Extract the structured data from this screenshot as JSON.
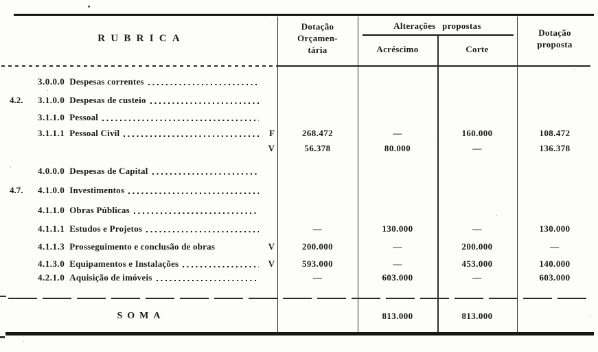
{
  "palette": {
    "ink": "#1a1a1a",
    "paper": "#fdfdfb"
  },
  "table": {
    "header": {
      "rubrica": "RUBRICA",
      "dotacao_orc_l1": "Dotação",
      "dotacao_orc_l2": "Orçamen-",
      "dotacao_orc_l3": "tária",
      "alteracoes_propostas": "Alterações propostas",
      "acrescimo": "Acréscimo",
      "corte": "Corte",
      "dotacao_prop_l1": "Dotação",
      "dotacao_prop_l2": "proposta"
    },
    "rows": [
      {
        "prefix": "",
        "code": "3.0.0.0",
        "label": "Despesas correntes",
        "marker": "",
        "dotacao": "",
        "acrescimo": "",
        "corte": "",
        "proposta": ""
      },
      {
        "prefix": "4.2.",
        "code": "3.1.0.0",
        "label": "Despesas de custeio",
        "marker": "",
        "dotacao": "",
        "acrescimo": "",
        "corte": "",
        "proposta": ""
      },
      {
        "prefix": "",
        "code": "3.1.1.0",
        "label": "Pessoal",
        "marker": "",
        "dotacao": "",
        "acrescimo": "",
        "corte": "",
        "proposta": ""
      },
      {
        "prefix": "",
        "code": "3.1.1.1",
        "label": "Pessoal Civil",
        "marker": "F",
        "dotacao": "268.472",
        "acrescimo": "—",
        "corte": "160.000",
        "proposta": "108.472"
      },
      {
        "prefix": "",
        "code": "",
        "label": "",
        "marker": "V",
        "dotacao": "56.378",
        "acrescimo": "80.000",
        "corte": "—",
        "proposta": "136.378"
      },
      {
        "prefix": "",
        "code": "4.0.0.0",
        "label": "Despesas de Capital",
        "marker": "",
        "dotacao": "",
        "acrescimo": "",
        "corte": "",
        "proposta": ""
      },
      {
        "prefix": "4.7.",
        "code": "4.1.0.0",
        "label": "Investimentos",
        "marker": "",
        "dotacao": "",
        "acrescimo": "",
        "corte": "",
        "proposta": ""
      },
      {
        "prefix": "",
        "code": "4.1.1.0",
        "label": "Obras Públicas",
        "marker": "",
        "dotacao": "",
        "acrescimo": "",
        "corte": "",
        "proposta": ""
      },
      {
        "prefix": "",
        "code": "4.1.1.1",
        "label": "Estudos e Projetos",
        "marker": "",
        "dotacao": "—",
        "acrescimo": "130.000",
        "corte": "—",
        "proposta": "130.000"
      },
      {
        "prefix": "",
        "code": "4.1.1.3",
        "label": "Prosseguimento e conclusão de obras",
        "marker": "V",
        "dotacao": "200.000",
        "acrescimo": "—",
        "corte": "200.000",
        "proposta": "—"
      },
      {
        "prefix": "",
        "code": "4.1.3.0",
        "label": "Equipamentos e Instalações",
        "marker": "V",
        "dotacao": "593.000",
        "acrescimo": "—",
        "corte": "453.000",
        "proposta": "140.000"
      },
      {
        "prefix": "",
        "code": "4.2.1.0",
        "label": "Aquisição de imóveis",
        "marker": "",
        "dotacao": "—",
        "acrescimo": "603.000",
        "corte": "—",
        "proposta": "603.000"
      }
    ],
    "soma": {
      "label": "SOMA",
      "acrescimo": "813.000",
      "corte": "813.000"
    }
  }
}
